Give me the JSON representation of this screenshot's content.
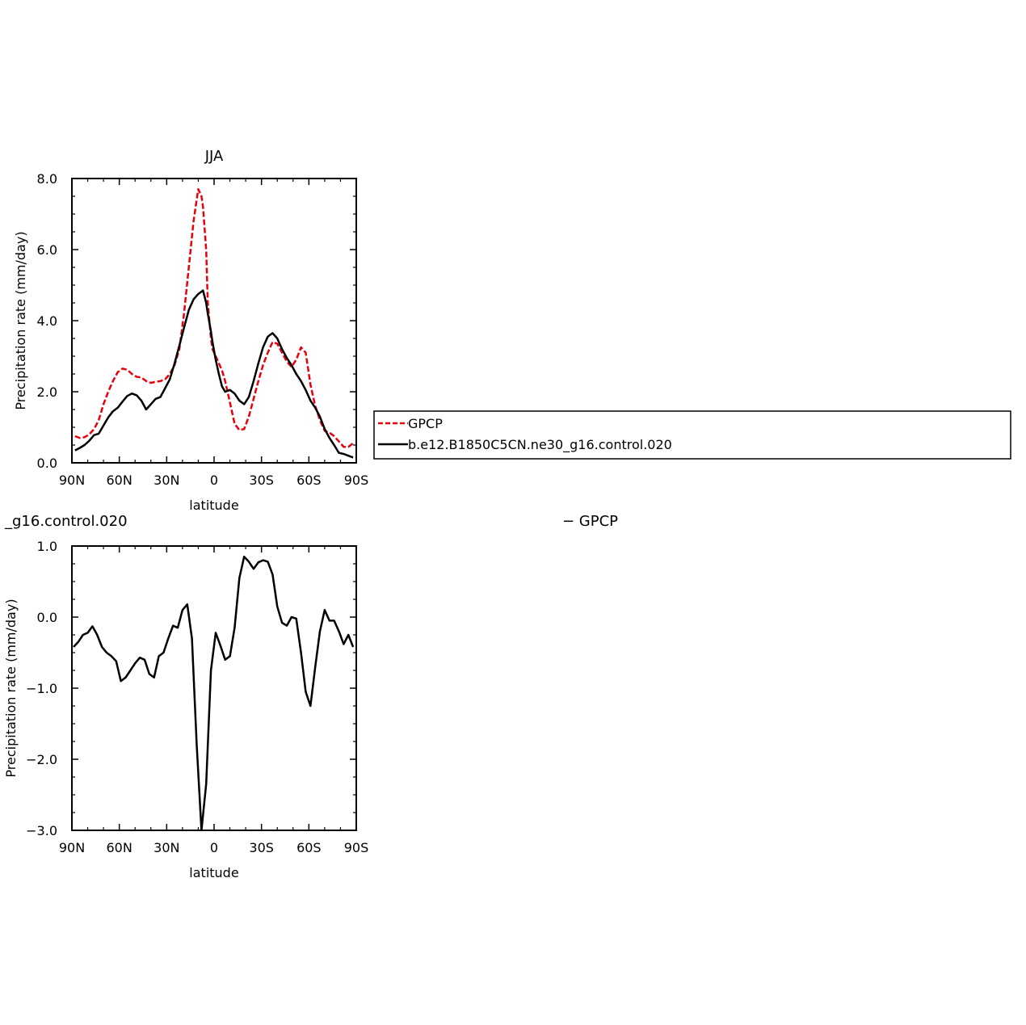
{
  "chart_data": [
    {
      "type": "line",
      "title": "JJA",
      "xlabel": "latitude",
      "ylabel": "Precipitation rate (mm/day)",
      "xlim": [
        -90,
        90
      ],
      "ylim": [
        0,
        8
      ],
      "x_tick_values": [
        -90,
        -60,
        -30,
        0,
        30,
        60,
        90
      ],
      "x_tick_labels": [
        "90N",
        "60N",
        "30N",
        "0",
        "30S",
        "60S",
        "90S"
      ],
      "y_tick_values": [
        0,
        2,
        4,
        6,
        8
      ],
      "y_tick_labels": [
        "0.0",
        "2.0",
        "4.0",
        "6.0",
        "8.0"
      ],
      "legend_position": "right",
      "series": [
        {
          "name": "GPCP",
          "color": "#e8000b",
          "dash": true,
          "x": [
            -88,
            -85,
            -82,
            -79,
            -76,
            -73,
            -70,
            -67,
            -64,
            -61,
            -58,
            -55,
            -52,
            -49,
            -46,
            -43,
            -40,
            -37,
            -34,
            -31,
            -28,
            -25,
            -22,
            -19,
            -16,
            -13,
            -10,
            -8,
            -7,
            -5,
            -4,
            -2,
            -1,
            1,
            3,
            5,
            7,
            10,
            13,
            16,
            19,
            22,
            25,
            28,
            31,
            34,
            37,
            40,
            43,
            46,
            49,
            52,
            55,
            58,
            61,
            64,
            67,
            70,
            73,
            76,
            79,
            82,
            85,
            88
          ],
          "y": [
            0.75,
            0.7,
            0.72,
            0.8,
            0.95,
            1.2,
            1.65,
            2.0,
            2.3,
            2.55,
            2.65,
            2.62,
            2.5,
            2.42,
            2.4,
            2.3,
            2.25,
            2.28,
            2.3,
            2.35,
            2.5,
            2.75,
            3.2,
            4.2,
            5.5,
            6.8,
            7.7,
            7.5,
            7.2,
            6.0,
            4.5,
            3.5,
            3.2,
            3.0,
            2.8,
            2.6,
            2.3,
            1.7,
            1.1,
            0.92,
            0.95,
            1.3,
            1.8,
            2.3,
            2.75,
            3.1,
            3.4,
            3.35,
            3.1,
            2.85,
            2.7,
            2.9,
            3.25,
            3.1,
            2.2,
            1.6,
            1.2,
            0.9,
            0.85,
            0.75,
            0.6,
            0.45,
            0.45,
            0.55
          ]
        },
        {
          "name": "b.e12.B1850C5CN.ne30_g16.control.020",
          "color": "#000000",
          "dash": false,
          "x": [
            -88,
            -85,
            -82,
            -79,
            -76,
            -73,
            -70,
            -67,
            -64,
            -61,
            -58,
            -55,
            -52,
            -49,
            -46,
            -43,
            -40,
            -37,
            -34,
            -31,
            -28,
            -25,
            -22,
            -19,
            -16,
            -13,
            -10,
            -7,
            -5,
            -4,
            -2,
            -1,
            1,
            3,
            5,
            7,
            10,
            13,
            16,
            19,
            22,
            25,
            28,
            31,
            34,
            37,
            40,
            43,
            46,
            49,
            52,
            55,
            58,
            61,
            64,
            67,
            70,
            73,
            76,
            79,
            82,
            85,
            88
          ],
          "y": [
            0.35,
            0.42,
            0.5,
            0.62,
            0.78,
            0.82,
            1.05,
            1.28,
            1.45,
            1.55,
            1.72,
            1.88,
            1.95,
            1.9,
            1.75,
            1.5,
            1.65,
            1.8,
            1.85,
            2.1,
            2.35,
            2.8,
            3.3,
            3.8,
            4.3,
            4.6,
            4.75,
            4.85,
            4.5,
            4.2,
            3.7,
            3.4,
            2.9,
            2.5,
            2.15,
            2.0,
            2.05,
            1.95,
            1.75,
            1.65,
            1.85,
            2.3,
            2.8,
            3.25,
            3.55,
            3.65,
            3.5,
            3.2,
            2.95,
            2.75,
            2.5,
            2.3,
            2.05,
            1.75,
            1.55,
            1.3,
            0.95,
            0.7,
            0.5,
            0.28,
            0.25,
            0.2,
            0.15
          ]
        }
      ]
    },
    {
      "type": "line",
      "title_left": "_g16.control.020",
      "title_right": "− GPCP",
      "xlabel": "latitude",
      "ylabel": "Precipitation rate (mm/day)",
      "xlim": [
        -90,
        90
      ],
      "ylim": [
        -3,
        1
      ],
      "x_tick_values": [
        -90,
        -60,
        -30,
        0,
        30,
        60,
        90
      ],
      "x_tick_labels": [
        "90N",
        "60N",
        "30N",
        "0",
        "30S",
        "60S",
        "90S"
      ],
      "y_tick_values": [
        -3,
        -2,
        -1,
        0,
        1
      ],
      "y_tick_labels": [
        "−3.0",
        "−2.0",
        "−1.0",
        "0.0",
        "1.0"
      ],
      "series": [
        {
          "color": "#000000",
          "dash": false,
          "x": [
            -89,
            -86,
            -83,
            -80,
            -77,
            -74,
            -71,
            -68,
            -65,
            -62,
            -59,
            -56,
            -53,
            -50,
            -47,
            -44,
            -41,
            -38,
            -35,
            -32,
            -29,
            -26,
            -23,
            -20,
            -17,
            -14,
            -11,
            -8,
            -5,
            -2,
            1,
            4,
            7,
            10,
            13,
            16,
            19,
            22,
            25,
            28,
            31,
            34,
            37,
            40,
            43,
            46,
            49,
            52,
            55,
            58,
            61,
            64,
            67,
            70,
            73,
            76,
            79,
            82,
            85,
            88
          ],
          "y": [
            -0.42,
            -0.35,
            -0.25,
            -0.22,
            -0.13,
            -0.25,
            -0.42,
            -0.5,
            -0.55,
            -0.62,
            -0.9,
            -0.85,
            -0.75,
            -0.65,
            -0.57,
            -0.6,
            -0.8,
            -0.85,
            -0.55,
            -0.5,
            -0.3,
            -0.12,
            -0.15,
            0.1,
            0.18,
            -0.3,
            -1.8,
            -3.0,
            -2.35,
            -0.75,
            -0.22,
            -0.4,
            -0.6,
            -0.55,
            -0.15,
            0.55,
            0.85,
            0.78,
            0.68,
            0.77,
            0.8,
            0.78,
            0.6,
            0.15,
            -0.08,
            -0.12,
            0.0,
            -0.02,
            -0.5,
            -1.05,
            -1.25,
            -0.7,
            -0.2,
            0.1,
            -0.05,
            -0.05,
            -0.2,
            -0.38,
            -0.25,
            -0.42
          ]
        }
      ]
    }
  ],
  "legend": {
    "entries": [
      {
        "label": "GPCP",
        "color": "#e8000b",
        "dash": true
      },
      {
        "label": "b.e12.B1850C5CN.ne30_g16.control.020",
        "color": "#000000",
        "dash": false
      }
    ]
  }
}
